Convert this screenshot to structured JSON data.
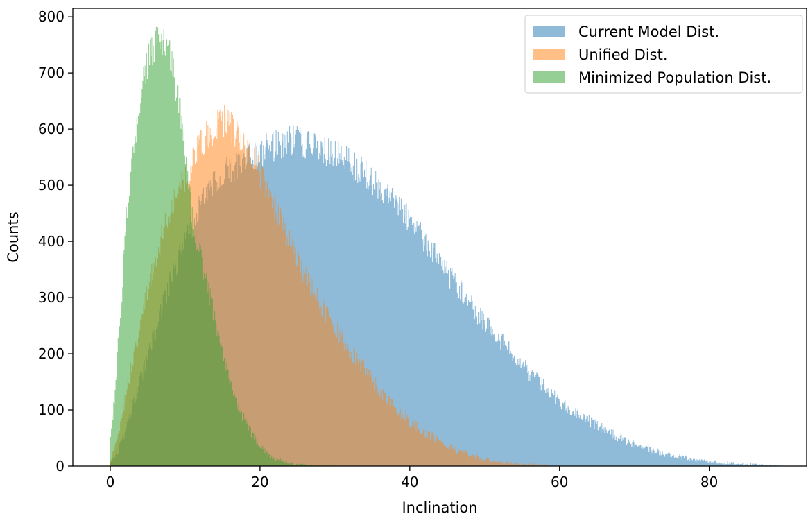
{
  "chart_data": {
    "type": "histogram",
    "xlabel": "Inclination",
    "ylabel": "Counts",
    "xlim": [
      -5,
      93
    ],
    "ylim": [
      0,
      815
    ],
    "xticks": [
      0,
      20,
      40,
      60,
      80
    ],
    "yticks": [
      0,
      100,
      200,
      300,
      400,
      500,
      600,
      700,
      800
    ],
    "grid": false,
    "legend_position": "upper right",
    "bin_width": 0.1,
    "series": [
      {
        "name": "Current Model Dist.",
        "color": "#1f77b4",
        "alpha": 0.5,
        "range": [
          0,
          90
        ],
        "profile_x": [
          0,
          1,
          2,
          4,
          6,
          8,
          10,
          12,
          14,
          16,
          18,
          20,
          22,
          24,
          26,
          28,
          30,
          32,
          34,
          36,
          38,
          40,
          42,
          44,
          46,
          48,
          50,
          52,
          54,
          56,
          58,
          60,
          62,
          64,
          66,
          68,
          70,
          72,
          74,
          76,
          78,
          80,
          82,
          84,
          86,
          88,
          90
        ],
        "profile_y": [
          5,
          25,
          60,
          150,
          240,
          330,
          400,
          460,
          505,
          530,
          545,
          560,
          570,
          580,
          575,
          565,
          555,
          540,
          520,
          500,
          470,
          440,
          400,
          365,
          325,
          290,
          255,
          225,
          195,
          165,
          140,
          115,
          95,
          80,
          65,
          50,
          40,
          30,
          22,
          16,
          12,
          9,
          6,
          4,
          3,
          2,
          0
        ]
      },
      {
        "name": "Unified Dist.",
        "color": "#ff7f0e",
        "alpha": 0.5,
        "range": [
          0,
          60
        ],
        "profile_x": [
          0,
          1,
          2,
          4,
          6,
          8,
          10,
          11,
          12,
          13,
          14,
          15,
          16,
          17,
          18,
          19,
          20,
          22,
          24,
          26,
          28,
          30,
          32,
          34,
          36,
          38,
          40,
          42,
          44,
          46,
          48,
          50,
          52,
          54,
          56,
          58,
          60
        ],
        "profile_y": [
          10,
          50,
          120,
          250,
          370,
          460,
          510,
          540,
          570,
          590,
          600,
          615,
          605,
          590,
          570,
          550,
          520,
          460,
          400,
          340,
          290,
          245,
          205,
          170,
          135,
          105,
          80,
          60,
          45,
          30,
          20,
          12,
          8,
          5,
          3,
          2,
          0
        ]
      },
      {
        "name": "Minimized Population Dist.",
        "color": "#2ca02c",
        "alpha": 0.5,
        "range": [
          0,
          30
        ],
        "profile_x": [
          0,
          0.5,
          1,
          1.5,
          2,
          3,
          4,
          5,
          6,
          7,
          8,
          9,
          10,
          11,
          12,
          13,
          14,
          15,
          16,
          17,
          18,
          19,
          20,
          21,
          22,
          24,
          26,
          28,
          30
        ],
        "profile_y": [
          50,
          110,
          200,
          300,
          420,
          560,
          650,
          720,
          750,
          755,
          735,
          660,
          560,
          440,
          380,
          320,
          260,
          200,
          150,
          110,
          80,
          55,
          35,
          22,
          12,
          5,
          2,
          1,
          0
        ]
      }
    ]
  }
}
